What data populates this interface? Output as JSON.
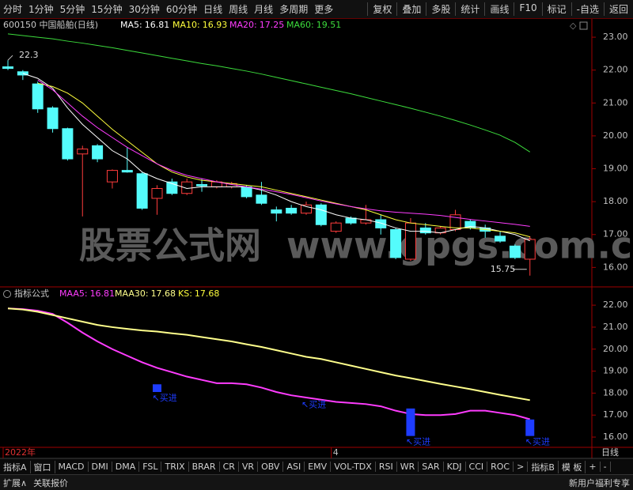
{
  "toolbar": {
    "periods": [
      "分时",
      "1分钟",
      "5分钟",
      "15分钟",
      "30分钟",
      "60分钟",
      "日线",
      "周线",
      "月线",
      "多周期",
      "更多"
    ],
    "tools": [
      "复权",
      "叠加",
      "多股",
      "统计",
      "画线",
      "F10",
      "标记",
      "-自选",
      "返回"
    ]
  },
  "watermark": [
    "股票公式网",
    "www.gpgs.com.cn"
  ],
  "chart_data": [
    {
      "type": "candlestick",
      "title": "600150 中国船舶(日线)",
      "up_color": "#ff3c3c",
      "down_color": "#54fcfc",
      "categories": [
        "2022年",
        null,
        null,
        null,
        null,
        null,
        null,
        null,
        null,
        null,
        null,
        null,
        null,
        null,
        null,
        null,
        null,
        null,
        null,
        null,
        null,
        null,
        "4",
        null,
        null,
        null,
        null,
        null,
        null,
        null,
        null,
        null,
        null,
        null,
        null,
        null
      ],
      "open": [
        22.1,
        21.95,
        21.58,
        20.85,
        20.22,
        19.45,
        19.7,
        18.6,
        18.95,
        18.85,
        18.1,
        18.6,
        18.25,
        18.52,
        18.45,
        18.45,
        18.45,
        18.2,
        17.75,
        17.8,
        17.65,
        17.9,
        17.1,
        17.5,
        17.35,
        17.45,
        17.15,
        16.25,
        17.2,
        17.05,
        17.15,
        17.4,
        17.2,
        16.95,
        16.65,
        16.25
      ],
      "high": [
        22.3,
        22.0,
        21.65,
        20.9,
        20.25,
        19.7,
        19.75,
        18.98,
        19.65,
        18.9,
        18.5,
        18.7,
        18.7,
        18.7,
        18.65,
        18.6,
        18.5,
        18.6,
        17.85,
        17.9,
        18.0,
        17.95,
        17.4,
        17.55,
        17.9,
        17.6,
        17.2,
        17.5,
        17.35,
        17.25,
        17.75,
        17.45,
        17.3,
        17.1,
        16.7,
        16.95
      ],
      "low": [
        22.0,
        21.7,
        20.7,
        20.1,
        19.25,
        17.55,
        19.2,
        18.4,
        18.88,
        17.75,
        17.6,
        18.2,
        18.2,
        18.3,
        18.4,
        18.4,
        18.1,
        17.9,
        17.4,
        17.6,
        17.6,
        17.25,
        17.05,
        17.3,
        17.3,
        17.0,
        16.25,
        16.2,
        17.0,
        17.0,
        17.1,
        17.15,
        16.9,
        16.75,
        16.25,
        15.75
      ],
      "close": [
        22.05,
        21.85,
        20.82,
        20.22,
        19.3,
        19.6,
        19.3,
        18.95,
        18.9,
        17.8,
        18.4,
        18.25,
        18.6,
        18.48,
        18.6,
        18.55,
        18.15,
        17.95,
        17.65,
        17.65,
        17.9,
        17.3,
        17.35,
        17.35,
        17.45,
        17.2,
        16.3,
        17.35,
        17.05,
        17.2,
        17.6,
        17.2,
        17.1,
        16.8,
        16.3,
        16.85
      ],
      "series": [
        {
          "name": "MA5:",
          "color": "#ffffff",
          "values": [
            null,
            21.9,
            21.75,
            21.45,
            20.85,
            20.35,
            19.95,
            19.55,
            19.3,
            18.9,
            18.7,
            18.55,
            18.4,
            18.45,
            18.45,
            18.45,
            18.45,
            18.35,
            18.2,
            18.0,
            17.85,
            17.75,
            17.6,
            17.5,
            17.45,
            17.35,
            17.2,
            17.1,
            17.1,
            17.05,
            17.15,
            17.25,
            17.2,
            17.1,
            17.0,
            16.81
          ]
        },
        {
          "name": "MA10:",
          "color": "#ffff3c",
          "values": [
            null,
            null,
            21.6,
            21.5,
            21.3,
            21.0,
            20.6,
            20.2,
            19.85,
            19.5,
            19.15,
            18.9,
            18.75,
            18.65,
            18.6,
            18.55,
            18.5,
            18.45,
            18.35,
            18.25,
            18.15,
            18.05,
            17.95,
            17.85,
            17.75,
            17.6,
            17.45,
            17.35,
            17.3,
            17.25,
            17.2,
            17.2,
            17.15,
            17.1,
            17.05,
            16.93
          ]
        },
        {
          "name": "MA20:",
          "color": "#ff3cff",
          "values": [
            null,
            null,
            21.7,
            21.4,
            21.0,
            20.6,
            20.25,
            19.95,
            19.65,
            19.4,
            19.15,
            18.95,
            18.8,
            18.7,
            18.6,
            18.52,
            18.45,
            18.38,
            18.3,
            18.22,
            18.12,
            18.02,
            17.93,
            17.85,
            17.78,
            17.72,
            17.68,
            17.65,
            17.62,
            17.58,
            17.52,
            17.46,
            17.41,
            17.36,
            17.31,
            17.25
          ]
        },
        {
          "name": "MA60:",
          "color": "#3cdc3c",
          "values": [
            23.1,
            23.05,
            23.0,
            22.95,
            22.88,
            22.82,
            22.75,
            22.68,
            22.6,
            22.52,
            22.44,
            22.36,
            22.28,
            22.2,
            22.13,
            22.05,
            21.97,
            21.88,
            21.78,
            21.68,
            21.58,
            21.48,
            21.38,
            21.28,
            21.17,
            21.06,
            20.95,
            20.84,
            20.72,
            20.6,
            20.47,
            20.33,
            20.18,
            20.02,
            19.8,
            19.51
          ]
        }
      ],
      "ylim": [
        15.48,
        23.17
      ],
      "yticks": [
        {
          "value": 16,
          "label": "16.00"
        },
        {
          "value": 17,
          "label": "17.00"
        },
        {
          "value": 18,
          "label": "18.00"
        },
        {
          "value": 19,
          "label": "19.00"
        },
        {
          "value": 20,
          "label": "20.00"
        },
        {
          "value": 21,
          "label": "21.00"
        },
        {
          "value": 22,
          "label": "22.00"
        },
        {
          "value": 23,
          "label": "23.00"
        }
      ]
    },
    {
      "type": "line",
      "title": "指标公式",
      "series": [
        {
          "name": "MAA5:",
          "color": "#ff3cff",
          "values": [
            21.85,
            21.82,
            21.75,
            21.6,
            21.2,
            20.75,
            20.35,
            20.0,
            19.7,
            19.4,
            19.15,
            18.95,
            18.75,
            18.6,
            18.45,
            18.45,
            18.4,
            18.25,
            18.05,
            17.9,
            17.8,
            17.7,
            17.6,
            17.55,
            17.5,
            17.4,
            17.2,
            17.05,
            17.0,
            17.0,
            17.05,
            17.2,
            17.2,
            17.1,
            17.0,
            16.81
          ]
        },
        {
          "name": "MAA30:",
          "color": "#ffff8c",
          "values": [
            21.85,
            21.8,
            21.7,
            21.55,
            21.4,
            21.25,
            21.1,
            21.0,
            20.92,
            20.85,
            20.8,
            20.72,
            20.65,
            20.55,
            20.45,
            20.35,
            20.22,
            20.1,
            19.95,
            19.8,
            19.65,
            19.55,
            19.4,
            19.25,
            19.1,
            18.95,
            18.8,
            18.68,
            18.55,
            18.42,
            18.3,
            18.18,
            18.05,
            17.92,
            17.8,
            17.68
          ]
        }
      ],
      "extra_legend": {
        "name": "KS:",
        "value": 17.68,
        "color": "#ffff3c"
      },
      "signals": [
        {
          "index": 10,
          "top": 18.4,
          "bottom": 18.05,
          "label": "↖买进"
        },
        {
          "index": 20,
          "top": 17.75,
          "bottom": 17.75,
          "label": "↖买进"
        },
        {
          "index": 27,
          "top": 17.3,
          "bottom": 16.05,
          "label": "↖买进"
        },
        {
          "index": 35,
          "top": 16.8,
          "bottom": 16.05,
          "label": "↖买进"
        }
      ],
      "signal_color": "#1e3cff",
      "ylim": [
        15.57,
        22.22
      ],
      "yticks": [
        {
          "value": 16,
          "label": "16.00"
        },
        {
          "value": 17,
          "label": "17.00"
        },
        {
          "value": 18,
          "label": "18.00"
        },
        {
          "value": 19,
          "label": "19.00"
        },
        {
          "value": 20,
          "label": "20.00"
        },
        {
          "value": 21,
          "label": "21.00"
        },
        {
          "value": 22,
          "label": "22.00"
        }
      ]
    }
  ],
  "bottom": {
    "period": "日线",
    "tabs": [
      "指标A",
      "窗口",
      "MACD",
      "DMI",
      "DMA",
      "FSL",
      "TRIX",
      "BRAR",
      "CR",
      "VR",
      "OBV",
      "ASI",
      "EMV",
      "VOL-TDX",
      "RSI",
      "WR",
      "SAR",
      "KDJ",
      "CCI",
      "ROC",
      ">",
      "指标B",
      "模 板",
      "+",
      "-"
    ],
    "status": [
      "扩展∧",
      "关联报价"
    ],
    "promo": "新用户福利专享"
  }
}
